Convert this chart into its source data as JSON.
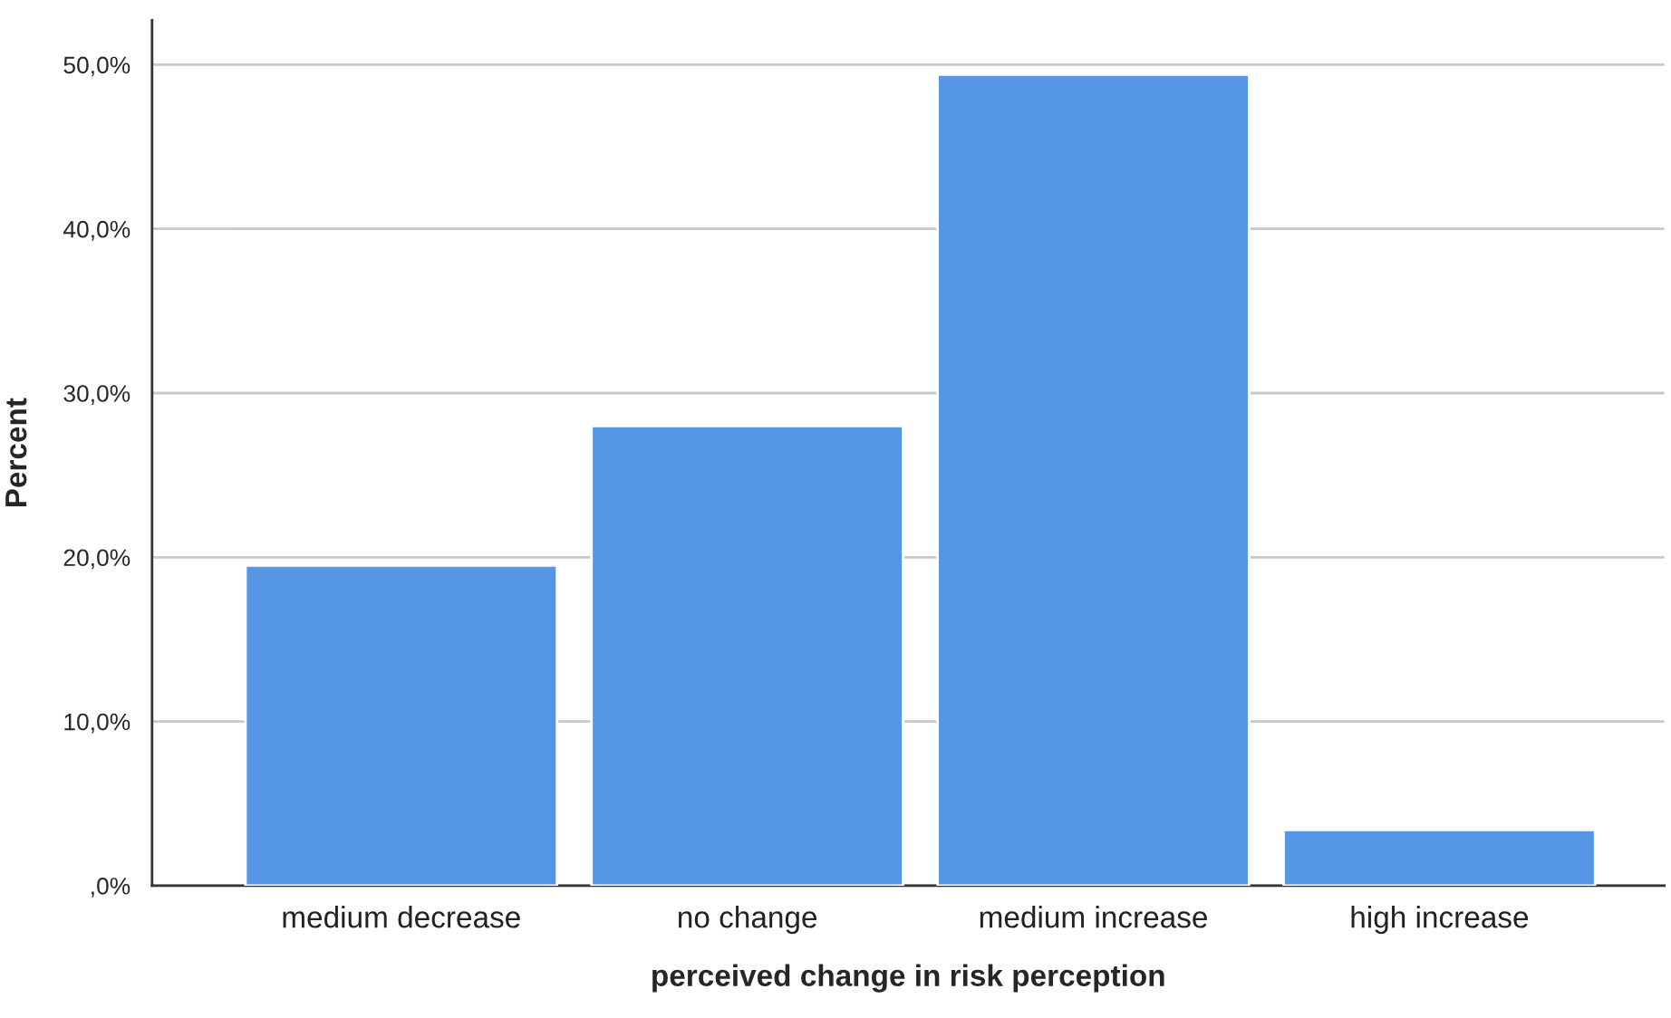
{
  "chart_data": {
    "type": "bar",
    "xlabel": "perceived change in risk perception",
    "ylabel": "Percent",
    "categories": [
      "medium decrease",
      "no change",
      "medium increase",
      "high increase"
    ],
    "values": [
      19.5,
      28.0,
      49.4,
      3.4
    ],
    "color": "#5596e6",
    "ylim": [
      0,
      52.7
    ],
    "yticks": [
      {
        "value": 0,
        "label": ",0%"
      },
      {
        "value": 10,
        "label": "10,0%"
      },
      {
        "value": 20,
        "label": "20,0%"
      },
      {
        "value": 30,
        "label": "30,0%"
      },
      {
        "value": 40,
        "label": "40,0%"
      },
      {
        "value": 50,
        "label": "50,0%"
      }
    ],
    "grid": "y"
  }
}
